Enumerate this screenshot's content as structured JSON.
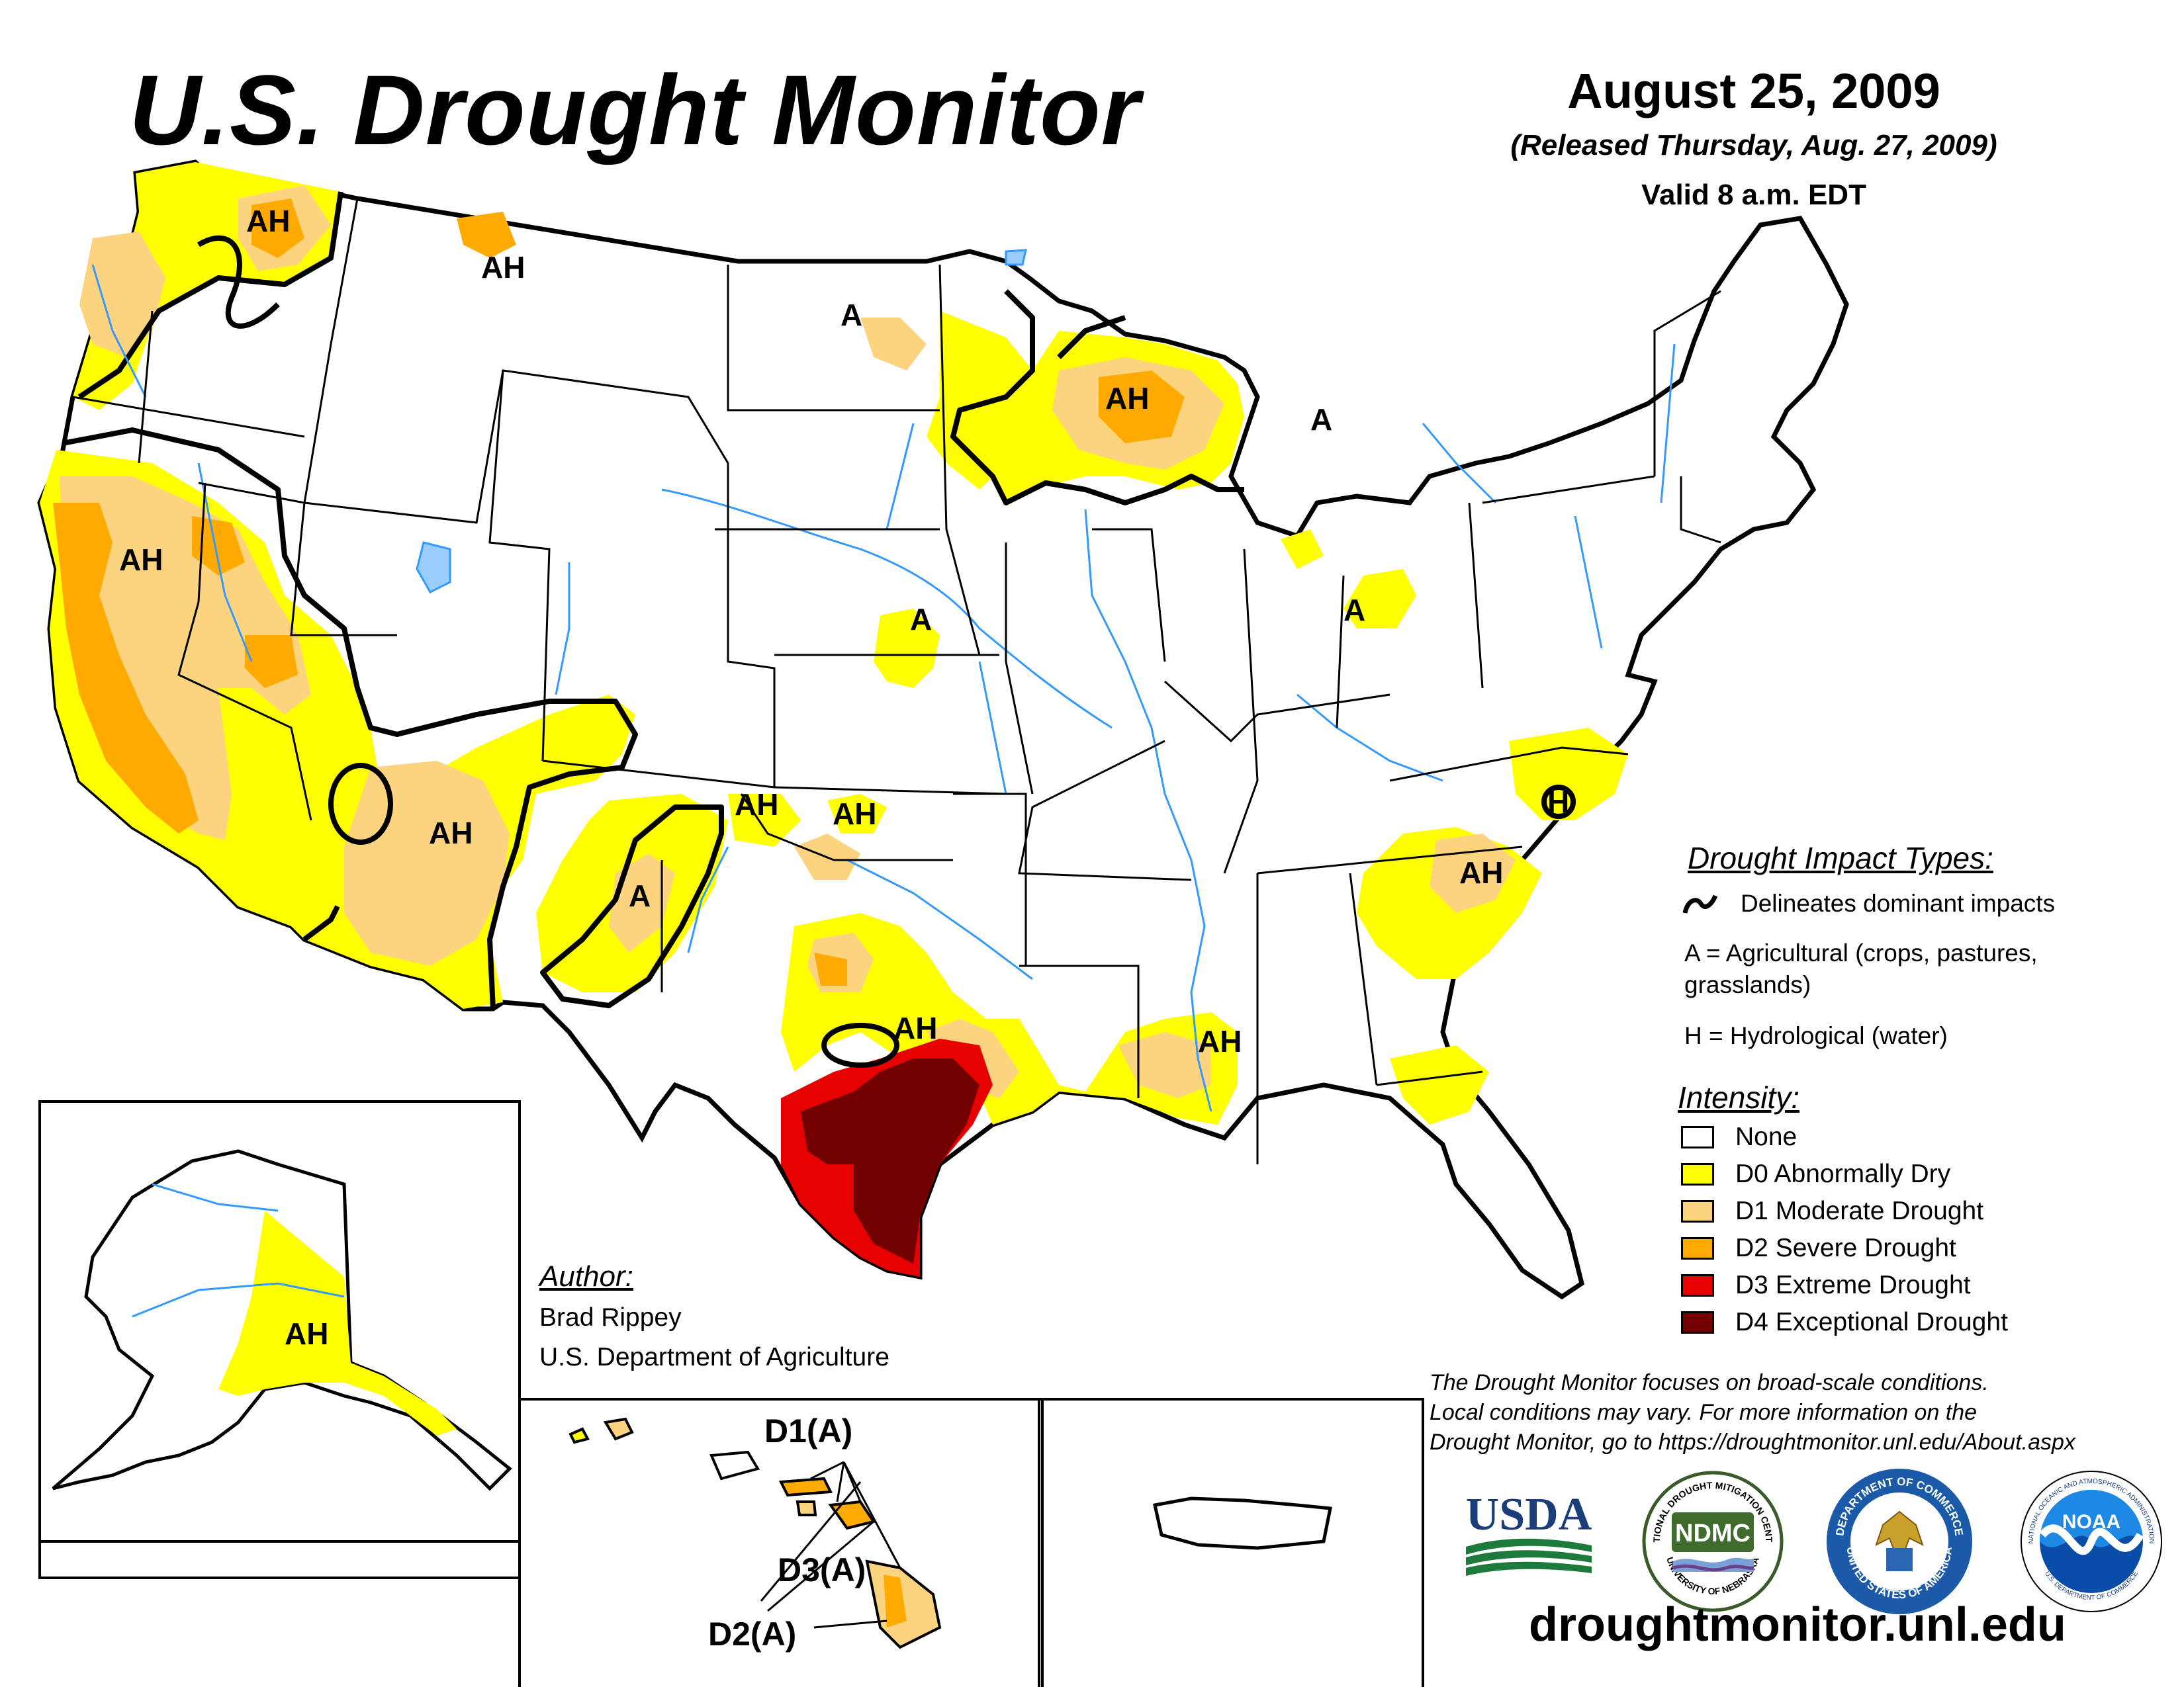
{
  "header": {
    "title": "U.S. Drought Monitor",
    "date": "August 25, 2009",
    "released": "(Released Thursday, Aug. 27, 2009)",
    "valid": "Valid 8 a.m. EDT"
  },
  "legend": {
    "impact_heading": "Drought Impact Types:",
    "delineates": "Delineates dominant impacts",
    "agricultural": "A = Agricultural (crops, pastures,",
    "agricultural_cont": "grasslands)",
    "hydrological": "H = Hydrological (water)",
    "intensity_heading": "Intensity:",
    "levels": [
      {
        "label": "None",
        "color": "#ffffff"
      },
      {
        "label": "D0 Abnormally Dry",
        "color": "#ffff00"
      },
      {
        "label": "D1 Moderate Drought",
        "color": "#fcd37f"
      },
      {
        "label": "D2 Severe Drought",
        "color": "#ffaa00"
      },
      {
        "label": "D3 Extreme Drought",
        "color": "#e60000"
      },
      {
        "label": "D4 Exceptional Drought",
        "color": "#730000"
      }
    ]
  },
  "author": {
    "heading": "Author:",
    "name": "Brad Rippey",
    "org": "U.S. Department of Agriculture"
  },
  "note": {
    "line1": "The Drought Monitor focuses on broad-scale conditions.",
    "line2": "Local conditions may vary. For more information on the",
    "line3": "Drought Monitor, go to https://droughtmonitor.unl.edu/About.aspx"
  },
  "url": "droughtmonitor.unl.edu",
  "map_labels": {
    "wa": "AH",
    "mt": "AH",
    "nd": "A",
    "wi": "AH",
    "mi": "A",
    "ca": "AH",
    "ne": "A",
    "oh": "A",
    "az": "AH",
    "nm": "A",
    "co": "AH",
    "ks": "AH",
    "nc": "H",
    "sc": "AH",
    "tx": "AH",
    "la": "AH",
    "ak": "AH",
    "hi_d1": "D1(A)",
    "hi_d3": "D3(A)",
    "hi_d2": "D2(A)"
  },
  "logos": {
    "usda": "USDA",
    "ndmc": "NDMC",
    "ndmc_ring_top": "NATIONAL DROUGHT MITIGATION CENTER",
    "ndmc_ring_bottom": "UNIVERSITY OF NEBRASKA",
    "commerce_ring_top": "DEPARTMENT OF COMMERCE",
    "commerce_ring_bottom": "UNITED STATES OF AMERICA",
    "noaa": "NOAA",
    "noaa_ring_top": "NATIONAL OCEANIC AND ATMOSPHERIC ADMINISTRATION",
    "noaa_ring_bottom": "U.S. DEPARTMENT OF COMMERCE"
  },
  "colors": {
    "d0": "#ffff00",
    "d1": "#fcd37f",
    "d2": "#ffaa00",
    "d3": "#e60000",
    "d4": "#730000",
    "water": "#3399ff",
    "lake": "#99ccff"
  }
}
